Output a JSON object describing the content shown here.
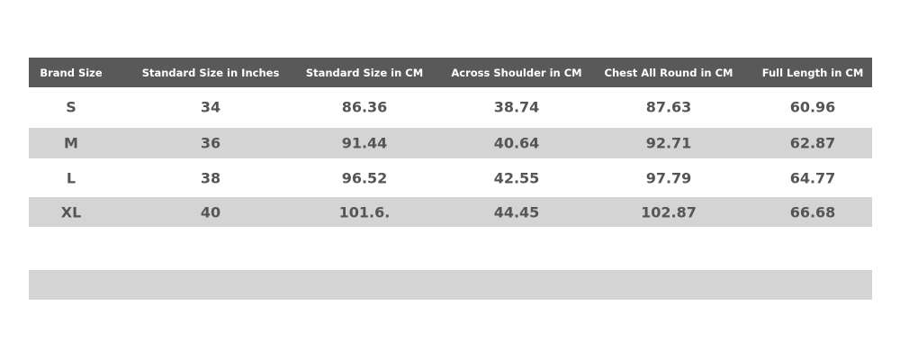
{
  "table": {
    "header": [
      "Brand Size",
      "Standard Size in Inches",
      "Standard Size in CM",
      "Across Shoulder in CM",
      "Chest All Round in CM",
      "Full Length in CM"
    ],
    "rows": [
      [
        "S",
        "34",
        "86.36",
        "38.74",
        "87.63",
        "60.96"
      ],
      [
        "M",
        "36",
        "91.44",
        "40.64",
        "92.71",
        "62.87"
      ],
      [
        "L",
        "38",
        "96.52",
        "42.55",
        "97.79",
        "64.77"
      ],
      [
        "XL",
        "40",
        "101.6.",
        "44.45",
        "102.87",
        "66.68"
      ]
    ]
  }
}
